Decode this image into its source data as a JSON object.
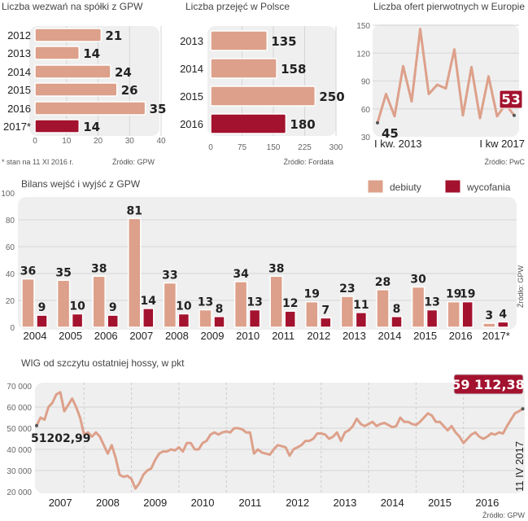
{
  "colors": {
    "main": "#dda08a",
    "highlight": "#a3122e",
    "panel": "#efefef",
    "grid": "#d6d6d6"
  },
  "chart_data": [
    {
      "type": "bar",
      "orientation": "horizontal",
      "title": "Liczba wezwań na spółki z GPW",
      "categories": [
        "2012",
        "2013",
        "2014",
        "2015",
        "2016",
        "2017*"
      ],
      "values": [
        21,
        14,
        24,
        26,
        35,
        14
      ],
      "highlight": [
        "2017*"
      ],
      "xlim": [
        0,
        40
      ],
      "xticks": [
        "0",
        "10",
        "20",
        "30",
        "40"
      ],
      "footnote": "* stan na 11 XI 2016 r.",
      "source": "Źródło: GPW"
    },
    {
      "type": "bar",
      "orientation": "horizontal",
      "title": "Liczba przejęć w Polsce",
      "categories": [
        "2013",
        "2014",
        "2015",
        "2016"
      ],
      "values": [
        135,
        158,
        250,
        180
      ],
      "highlight": [
        "2016"
      ],
      "xlim": [
        0,
        300
      ],
      "xticks": [
        "0",
        "75",
        "150",
        "225",
        "300"
      ],
      "source": "Źródło: Fordata"
    },
    {
      "type": "line",
      "title": "Liczba ofert pierwotnych w Europie",
      "values": [
        45,
        76,
        52,
        106,
        68,
        146,
        76,
        86,
        82,
        124,
        53,
        105,
        50,
        95,
        52,
        65,
        53
      ],
      "ylim": [
        30,
        150
      ],
      "yticks": [
        "30",
        "60",
        "90",
        "120",
        "150"
      ],
      "xlabels": [
        "I kw. 2013",
        "I kw 2017"
      ],
      "first_label": "45",
      "last_label": "53",
      "source": "Źródło: PwC"
    },
    {
      "type": "bar",
      "title": "Bilans wejść i wyjść z GPW",
      "categories": [
        "2004",
        "2005",
        "2006",
        "2007",
        "2008",
        "2009",
        "2010",
        "2011",
        "2012",
        "2013",
        "2014",
        "2015",
        "2016",
        "2017*"
      ],
      "series": [
        {
          "name": "debiuty",
          "values": [
            36,
            35,
            38,
            81,
            33,
            13,
            34,
            38,
            19,
            23,
            28,
            30,
            19,
            3
          ]
        },
        {
          "name": "wycofania",
          "values": [
            9,
            10,
            9,
            14,
            10,
            8,
            13,
            12,
            7,
            11,
            8,
            13,
            19,
            4
          ]
        }
      ],
      "ylim": [
        0,
        100
      ],
      "yticks": [
        "0",
        "20",
        "40",
        "60",
        "80",
        "100"
      ],
      "legend": "top-right",
      "source": "Źródło: GPW"
    },
    {
      "type": "line",
      "title": "WIG od szczytu ostatniej hossy, w pkt",
      "values_by_year": {
        "2007": [
          51203,
          55000,
          54000,
          60000,
          62000,
          66000,
          67000,
          58000,
          61000,
          64000,
          60000,
          55000
        ],
        "2008": [
          47000,
          48000,
          46000,
          48000,
          46000,
          42000,
          38000,
          42000,
          36000,
          28000,
          27000,
          27500
        ],
        "2009": [
          26000,
          21500,
          24000,
          28000,
          30000,
          31000,
          35000,
          38000,
          39000,
          39000,
          40000,
          39500
        ],
        "2010": [
          41000,
          39000,
          43000,
          43000,
          40000,
          40000,
          43000,
          44000,
          47000,
          48000,
          47000,
          48000
        ],
        "2011": [
          48500,
          48000,
          50000,
          50000,
          49500,
          48000,
          48000,
          38000,
          40000,
          38500,
          38000,
          37500
        ],
        "2012": [
          40000,
          42000,
          41500,
          41000,
          37000,
          40000,
          41000,
          42000,
          44000,
          44000,
          45000,
          47500
        ],
        "2013": [
          47500,
          47000,
          45000,
          46000,
          48000,
          44000,
          48000,
          49000,
          51000,
          54500,
          52000,
          51000
        ],
        "2014": [
          52000,
          53000,
          51000,
          52000,
          52500,
          51500,
          50500,
          51000,
          55000,
          53000,
          53000,
          52000
        ],
        "2015": [
          51500,
          53000,
          55000,
          57000,
          56000,
          53000,
          53000,
          51000,
          49000,
          51000,
          48000,
          46000
        ],
        "2016": [
          43000,
          45000,
          47000,
          48000,
          46000,
          45000,
          46000,
          47500,
          47000,
          48000,
          47500,
          51000
        ],
        "2017": [
          54000,
          57000,
          58000,
          59112.38
        ]
      },
      "ylim": [
        20000,
        70000
      ],
      "yticks": [
        "20 000",
        "30 000",
        "40 000",
        "50 000",
        "60 000",
        "70 000"
      ],
      "xticks": [
        "2007",
        "2008",
        "2009",
        "2010",
        "2011",
        "2012",
        "2013",
        "2014",
        "2015",
        "2016"
      ],
      "first_label": "51202,99",
      "last_label": "59 112,38",
      "end_date": "11 IV 2017",
      "source": "Źródło: GPW"
    }
  ]
}
